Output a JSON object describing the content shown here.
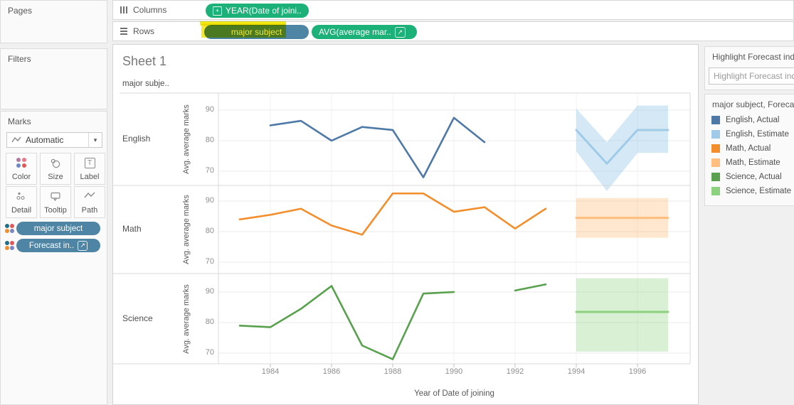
{
  "shelves": {
    "columns_label": "Columns",
    "rows_label": "Rows",
    "columns_pill": "YEAR(Date of joini..",
    "rows_pill_dimension": "major subject",
    "rows_pill_measure": "AVG(average mar..",
    "pill_green": "#1bb178",
    "pill_blue": "#4e84a4",
    "highlight_yellow": "#f0e400"
  },
  "left_panel": {
    "pages_label": "Pages",
    "filters_label": "Filters",
    "marks": {
      "label": "Marks",
      "mark_type": "Automatic",
      "buttons": [
        "Color",
        "Size",
        "Label",
        "Detail",
        "Tooltip",
        "Path"
      ],
      "pill1": "major subject",
      "pill2": "Forecast in.."
    }
  },
  "sheet": {
    "title": "Sheet 1",
    "column_header": "major subje.."
  },
  "right_panel": {
    "highlight_card": {
      "title": "Highlight Forecast indi",
      "input_placeholder": "Highlight Forecast ind..."
    },
    "legend": {
      "title": "major subject, Forecas",
      "items": [
        {
          "label": "English, Actual",
          "color": "#4e79a7"
        },
        {
          "label": "English, Estimate",
          "color": "#a0cbe8"
        },
        {
          "label": "Math, Actual",
          "color": "#f28e2b"
        },
        {
          "label": "Math, Estimate",
          "color": "#ffbe7d"
        },
        {
          "label": "Science, Actual",
          "color": "#59a14f"
        },
        {
          "label": "Science, Estimate",
          "color": "#8cd17d"
        }
      ]
    }
  },
  "chart_data": {
    "type": "line",
    "title": "Sheet 1",
    "xlabel": "Year of Date of joining",
    "ylabel": "Avg. average marks",
    "x_ticks": [
      1984,
      1986,
      1988,
      1990,
      1992,
      1994,
      1996
    ],
    "y_ticks": [
      90,
      80,
      70
    ],
    "xlim": [
      1982.5,
      1997.7
    ],
    "ylim_per_pane": [
      64,
      95
    ],
    "grid": "horizontal",
    "legend_position": "right",
    "panes": [
      {
        "label": "English",
        "actual_color": "#4e79a7",
        "estimate_color": "#a0cbe8",
        "band_opacity": 0.45,
        "actual_segments": [
          {
            "x": [
              1984,
              1985,
              1986,
              1987,
              1988,
              1989,
              1990,
              1991
            ],
            "y": [
              85,
              86.5,
              80,
              84.5,
              83.5,
              68,
              87.5,
              79.5
            ]
          }
        ],
        "estimate": {
          "x": [
            1994,
            1995,
            1996,
            1997
          ],
          "y": [
            83.5,
            72.5,
            83.5,
            83.5
          ],
          "upper": [
            90.5,
            79.5,
            91.5,
            91.5
          ],
          "lower": [
            76.5,
            63.5,
            76,
            76
          ]
        }
      },
      {
        "label": "Math",
        "actual_color": "#f28e2b",
        "estimate_color": "#ffbe7d",
        "band_opacity": 0.38,
        "actual_segments": [
          {
            "x": [
              1983,
              1984,
              1985,
              1986,
              1987,
              1988,
              1989,
              1990,
              1991,
              1992,
              1993
            ],
            "y": [
              84,
              85.5,
              87.5,
              82,
              79,
              92.5,
              92.5,
              86.5,
              88,
              81,
              87.5
            ]
          }
        ],
        "estimate": {
          "x": [
            1994,
            1997
          ],
          "y": [
            84.5,
            84.5
          ],
          "upper": [
            91,
            91
          ],
          "lower": [
            78,
            78
          ]
        }
      },
      {
        "label": "Science",
        "actual_color": "#59a14f",
        "estimate_color": "#8cd17d",
        "band_opacity": 0.32,
        "actual_segments": [
          {
            "x": [
              1983,
              1984,
              1985,
              1986,
              1987,
              1988,
              1989,
              1990
            ],
            "y": [
              79,
              78.5,
              84.5,
              92,
              72.5,
              68,
              89.5,
              90
            ]
          },
          {
            "x": [
              1992,
              1993
            ],
            "y": [
              90.5,
              92.5
            ]
          }
        ],
        "estimate": {
          "x": [
            1994,
            1997
          ],
          "y": [
            83.5,
            83.5
          ],
          "upper": [
            94.5,
            94.5
          ],
          "lower": [
            70.5,
            70.5
          ]
        }
      }
    ]
  }
}
